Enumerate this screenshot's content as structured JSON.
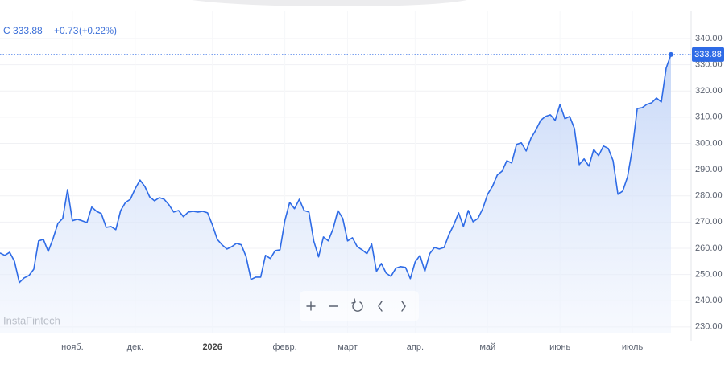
{
  "header": {
    "symbol": "C",
    "change": "+0.73",
    "change_pct": "(+0.22%)"
  },
  "watermark": "InstaFintech",
  "chart_data": {
    "type": "area",
    "color": "#2e6be6",
    "values": [
      258.2,
      257.3,
      258.5,
      255,
      246.9,
      248.7,
      249.6,
      252,
      262.8,
      263.4,
      258.8,
      263.7,
      269.5,
      271.4,
      282.4,
      270.5,
      271.1,
      270.5,
      269.8,
      275.7,
      274.1,
      273.2,
      268,
      268.3,
      267.1,
      274.4,
      277.5,
      278.7,
      282.7,
      286,
      283.6,
      279.6,
      278.1,
      279.3,
      278.7,
      276.6,
      273.8,
      274.4,
      272,
      273.8,
      274.1,
      273.8,
      274.1,
      273.5,
      268.9,
      263.4,
      261.3,
      259.7,
      260.6,
      261.9,
      261.3,
      256.7,
      248.1,
      249,
      249,
      257.3,
      256.1,
      259.1,
      259.4,
      270.5,
      277.5,
      275.1,
      278.7,
      274.4,
      273.8,
      262.8,
      256.7,
      264.3,
      262.8,
      267.4,
      274.4,
      271.4,
      262.8,
      264,
      260.6,
      259.4,
      257.9,
      261.6,
      251.2,
      254.2,
      250.5,
      249.3,
      252.4,
      253,
      252.7,
      248.4,
      254.8,
      257.3,
      251.2,
      257.9,
      260.3,
      259.7,
      260.3,
      265.2,
      268.9,
      273.5,
      268.3,
      274.4,
      270.1,
      271.4,
      275.1,
      280.6,
      283.6,
      287.9,
      289.4,
      293.4,
      292.5,
      299.6,
      300.2,
      297.1,
      302,
      305.1,
      308.8,
      310.3,
      310.9,
      308.8,
      314.9,
      309.4,
      310.3,
      305.7,
      291.9,
      294.1,
      291.3,
      297.7,
      295.3,
      299,
      298.1,
      293.4,
      280.6,
      281.8,
      287.3,
      298.1,
      313.3,
      313.6,
      314.9,
      315.5,
      317.3,
      315.8,
      328.7,
      333.88
    ],
    "xlim": [
      0,
      139
    ],
    "xticks": [
      {
        "value": 15,
        "label": "нояб."
      },
      {
        "value": 28,
        "label": "дек."
      },
      {
        "value": 44,
        "label": "2026"
      },
      {
        "value": 59,
        "label": "февр."
      },
      {
        "value": 72,
        "label": "март"
      },
      {
        "value": 86,
        "label": "апр."
      },
      {
        "value": 101,
        "label": "май"
      },
      {
        "value": 116,
        "label": "июнь"
      },
      {
        "value": 131,
        "label": "июль"
      }
    ],
    "ylim": [
      227.5,
      354.7
    ],
    "yticks": [
      {
        "value": 230,
        "label": "230.00"
      },
      {
        "value": 240,
        "label": "240.00"
      },
      {
        "value": 250,
        "label": "250.00"
      },
      {
        "value": 260,
        "label": "260.00"
      },
      {
        "value": 270,
        "label": "270.00"
      },
      {
        "value": 280,
        "label": "280.00"
      },
      {
        "value": 290,
        "label": "290.00"
      },
      {
        "value": 300,
        "label": "300.00"
      },
      {
        "value": 310,
        "label": "310.00"
      },
      {
        "value": 320,
        "label": "320.00"
      },
      {
        "value": 330,
        "label": "330.00"
      },
      {
        "value": 340,
        "label": "340.00"
      }
    ],
    "grid": true
  }
}
